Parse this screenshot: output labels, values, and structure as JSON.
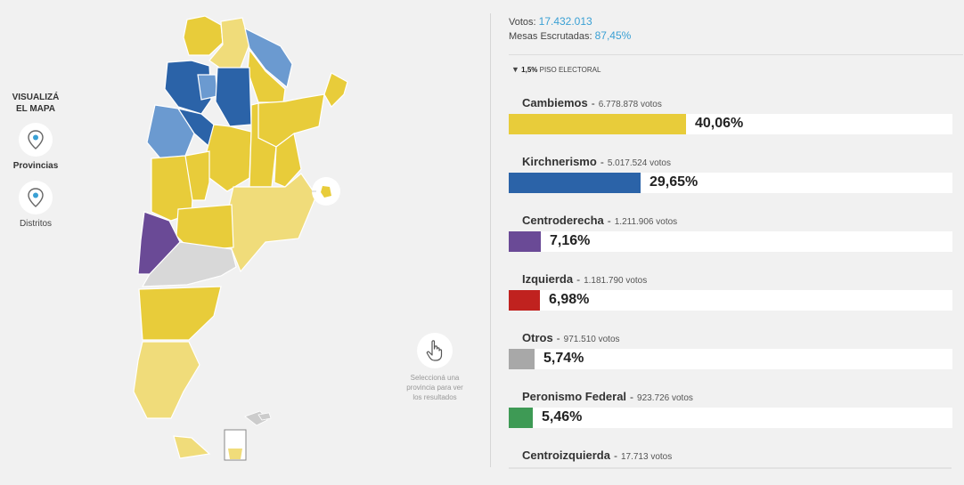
{
  "sidebar": {
    "title": "VISUALIZÁ EL MAPA",
    "modes": [
      {
        "label": "Provincias",
        "icon": "map-pin-icon",
        "active": true
      },
      {
        "label": "Distritos",
        "icon": "map-pin-icon",
        "active": false
      }
    ]
  },
  "map": {
    "hint_icon": "hand-pointer-icon",
    "hint_text": "Seleccioná una provincia para ver los resultados",
    "colors": {
      "yellow": "#e8cc3a",
      "light_yellow": "#f0dc7a",
      "blue": "#2b63a8",
      "light_blue": "#6b9ad0",
      "purple": "#6a4a96",
      "gray": "#d8d8d8"
    }
  },
  "summary": {
    "votos_label": "Votos:",
    "votos_value": "17.432.013",
    "mesas_label": "Mesas Escrutadas:",
    "mesas_value": "87,45%"
  },
  "threshold": {
    "bold": "1,5%",
    "label": "PISO ELECTORAL",
    "icon": "triangle-down-icon"
  },
  "parties": [
    {
      "name": "Cambiemos",
      "votes": "6.778.878 votos",
      "pct": "40,06%",
      "share": 40.06,
      "color": "#e8cc3a"
    },
    {
      "name": "Kirchnerismo",
      "votes": "5.017.524 votos",
      "pct": "29,65%",
      "share": 29.65,
      "color": "#2b63a8"
    },
    {
      "name": "Centroderecha",
      "votes": "1.211.906 votos",
      "pct": "7,16%",
      "share": 7.16,
      "color": "#6a4a96"
    },
    {
      "name": "Izquierda",
      "votes": "1.181.790 votos",
      "pct": "6,98%",
      "share": 6.98,
      "color": "#c0221f"
    },
    {
      "name": "Otros",
      "votes": "971.510 votos",
      "pct": "5,74%",
      "share": 5.74,
      "color": "#a8a8a8"
    },
    {
      "name": "Peronismo Federal",
      "votes": "923.726 votos",
      "pct": "5,46%",
      "share": 5.46,
      "color": "#3e9a55"
    },
    {
      "name": "Centroizquierda",
      "votes": "17.713 votos",
      "pct": "",
      "share": null,
      "color": ""
    }
  ]
}
